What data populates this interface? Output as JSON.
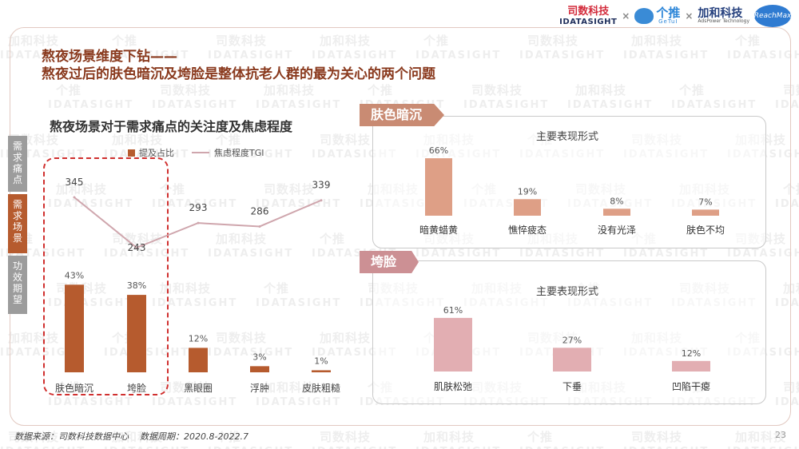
{
  "header": {
    "logo_sishu_cn": "司数科技",
    "logo_sishu_en": "IDATASIGHT",
    "logo_getui_cn": "个推",
    "logo_getui_en": "GeTuI",
    "logo_jiahe_cn": "加和科技",
    "logo_jiahe_en": "AdsPower Technology",
    "logo_reach": "ReachMax",
    "separator": "×"
  },
  "title": {
    "line1": "熬夜场景维度下钻——",
    "line2": "熬夜过后的肤色暗沉及垮脸是整体抗老人群的最为关心的两个问题"
  },
  "side_tabs": [
    {
      "label": "需求痛点"
    },
    {
      "label": "需求场景"
    },
    {
      "label": "功效期望"
    }
  ],
  "chart_data": [
    {
      "type": "bar",
      "title": "熬夜场景对于需求痛点的关注度及焦虑程度",
      "categories": [
        "肤色暗沉",
        "垮脸",
        "黑眼圈",
        "浮肿",
        "皮肤粗糙"
      ],
      "series": [
        {
          "name": "提及占比",
          "values": [
            43,
            38,
            12,
            3,
            1
          ],
          "labels": [
            "43%",
            "38%",
            "12%",
            "3%",
            "1%"
          ],
          "kind": "bar",
          "color": "#b65b2e"
        },
        {
          "name": "焦虑程度TGI",
          "values": [
            345,
            243,
            293,
            286,
            339
          ],
          "labels": [
            "345",
            "243",
            "293",
            "286",
            "339"
          ],
          "kind": "line",
          "color": "#cfa6ad"
        }
      ],
      "highlighted_categories": [
        "肤色暗沉",
        "垮脸"
      ]
    },
    {
      "type": "bar",
      "panel_tag": "肤色暗沉",
      "title": "主要表现形式",
      "categories": [
        "暗黄蜡黄",
        "憔悴疲态",
        "没有光泽",
        "肤色不均"
      ],
      "values": [
        66,
        19,
        8,
        7
      ],
      "labels": [
        "66%",
        "19%",
        "8%",
        "7%"
      ],
      "color": "#de9f86"
    },
    {
      "type": "bar",
      "panel_tag": "垮脸",
      "title": "主要表现形式",
      "categories": [
        "肌肤松弛",
        "下垂",
        "凹陷干瘪"
      ],
      "values": [
        61,
        27,
        12
      ],
      "labels": [
        "61%",
        "27%",
        "12%"
      ],
      "color": "#e2aeb2"
    }
  ],
  "footer": {
    "source": "数据来源：司数科技数据中心",
    "period": "数据周期：2020.8-2022.7",
    "page": "23"
  }
}
